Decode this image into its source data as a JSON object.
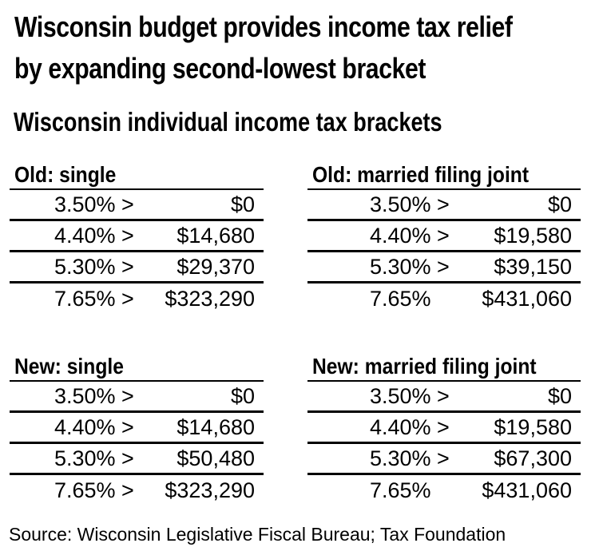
{
  "title": {
    "line1": "Wisconsin budget provides income tax relief",
    "line2": "by expanding second-lowest bracket"
  },
  "subtitle": "Wisconsin individual income tax brackets",
  "source": "Source: Wisconsin Legislative Fiscal Bureau; Tax Foundation",
  "colors": {
    "text": "#000000",
    "background": "#ffffff",
    "rule": "#000000"
  },
  "chart_data": {
    "type": "table",
    "title": "Wisconsin individual income tax brackets",
    "layout": "2x2 grid of bracket tables, rate column left-aligned, threshold column right-aligned, horizontal rules between rows",
    "tables": [
      {
        "label": "Old: single",
        "rows": [
          {
            "rate": "3.50% >",
            "threshold": "$0"
          },
          {
            "rate": "4.40% >",
            "threshold": "$14,680"
          },
          {
            "rate": "5.30% >",
            "threshold": "$29,370"
          },
          {
            "rate": "7.65% >",
            "threshold": "$323,290"
          }
        ]
      },
      {
        "label": "Old: married filing joint",
        "rows": [
          {
            "rate": "3.50% >",
            "threshold": "$0"
          },
          {
            "rate": "4.40% >",
            "threshold": "$19,580"
          },
          {
            "rate": "5.30% >",
            "threshold": "$39,150"
          },
          {
            "rate": "7.65%",
            "threshold": "$431,060"
          }
        ]
      },
      {
        "label": "New: single",
        "rows": [
          {
            "rate": "3.50% >",
            "threshold": "$0"
          },
          {
            "rate": "4.40% >",
            "threshold": "$14,680"
          },
          {
            "rate": "5.30% >",
            "threshold": "$50,480"
          },
          {
            "rate": "7.65% >",
            "threshold": "$323,290"
          }
        ]
      },
      {
        "label": "New: married filing joint",
        "rows": [
          {
            "rate": "3.50% >",
            "threshold": "$0"
          },
          {
            "rate": "4.40% >",
            "threshold": "$19,580"
          },
          {
            "rate": "5.30% >",
            "threshold": "$67,300"
          },
          {
            "rate": "7.65%",
            "threshold": "$431,060"
          }
        ]
      }
    ]
  }
}
